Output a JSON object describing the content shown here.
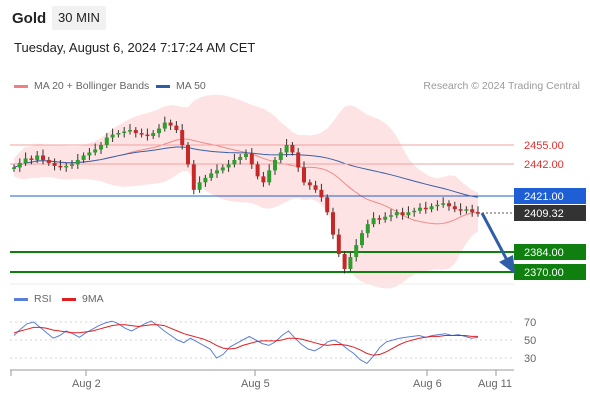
{
  "header": {
    "instrument": "Gold",
    "interval": "30 MIN",
    "datetime": "Tuesday, August 6, 2024 7:17:24 AM CET"
  },
  "legend_main": [
    {
      "label": "MA 20 + Bollinger Bands",
      "color": "#f08080"
    },
    {
      "label": "MA 50",
      "color": "#2e5da8"
    }
  ],
  "credit": "Research © 2024 Trading Central",
  "legend_rsi": [
    {
      "label": "RSI",
      "color": "#5b7fd6"
    },
    {
      "label": "9MA",
      "color": "#e02020"
    }
  ],
  "colors": {
    "resistance": "#e0302f",
    "pivot": "#1f5fd6",
    "support": "#0f7f0f",
    "current": "#333333",
    "band_fill": "#fde3e3",
    "ma50": "#3a5fa8",
    "arrow": "#2f5ea8"
  },
  "chart_data": [
    {
      "type": "candlestick",
      "title": "",
      "x_labels": [
        "Aug 2",
        "Aug 5",
        "Aug 6",
        "Aug 11"
      ],
      "price_levels": [
        {
          "value": "2455.00",
          "kind": "resistance"
        },
        {
          "value": "2442.00",
          "kind": "resistance"
        },
        {
          "value": "2421.00",
          "kind": "pivot"
        },
        {
          "value": "2409.32",
          "kind": "current"
        },
        {
          "value": "2384.00",
          "kind": "support"
        },
        {
          "value": "2370.00",
          "kind": "support"
        }
      ],
      "series": [
        {
          "name": "MA 20 + Bollinger Bands"
        },
        {
          "name": "MA 50"
        }
      ],
      "forecast": "down arrow toward 2370.00",
      "close_path": [
        2440,
        2443,
        2446,
        2445,
        2448,
        2445,
        2443,
        2441,
        2440,
        2441,
        2442,
        2445,
        2448,
        2450,
        2452,
        2455,
        2460,
        2462,
        2463,
        2464,
        2465,
        2463,
        2462,
        2461,
        2463,
        2466,
        2470,
        2468,
        2465,
        2455,
        2442,
        2425,
        2430,
        2433,
        2436,
        2438,
        2440,
        2442,
        2445,
        2447,
        2449,
        2442,
        2434,
        2430,
        2438,
        2445,
        2450,
        2455,
        2450,
        2440,
        2430,
        2428,
        2425,
        2420,
        2410,
        2395,
        2382,
        2372,
        2380,
        2388,
        2396,
        2402,
        2406,
        2405,
        2407,
        2408,
        2410,
        2408,
        2410,
        2411,
        2413,
        2412,
        2414,
        2415,
        2416,
        2414,
        2412,
        2411,
        2412,
        2410,
        2409
      ]
    },
    {
      "type": "line",
      "title": "",
      "y_ticks": [
        70,
        50,
        30
      ],
      "series": [
        {
          "name": "RSI",
          "values": [
            55,
            62,
            68,
            70,
            64,
            58,
            52,
            55,
            60,
            57,
            53,
            58,
            62,
            66,
            69,
            71,
            68,
            63,
            60,
            64,
            68,
            71,
            66,
            60,
            55,
            50,
            47,
            52,
            48,
            44,
            40,
            30,
            34,
            42,
            46,
            50,
            54,
            50,
            46,
            44,
            48,
            55,
            60,
            52,
            45,
            40,
            38,
            42,
            48,
            50,
            46,
            40,
            35,
            28,
            24,
            32,
            42,
            48,
            50,
            52,
            53,
            54,
            55,
            53,
            55,
            56,
            57,
            55,
            56,
            54,
            52,
            53
          ]
        },
        {
          "name": "9MA",
          "values": [
            58,
            60,
            62,
            64,
            64,
            63,
            61,
            60,
            59,
            58,
            58,
            59,
            60,
            62,
            64,
            66,
            67,
            67,
            66,
            65,
            66,
            67,
            67,
            66,
            63,
            60,
            57,
            55,
            53,
            51,
            48,
            44,
            41,
            40,
            41,
            44,
            46,
            48,
            49,
            49,
            49,
            50,
            52,
            52,
            51,
            49,
            47,
            45,
            44,
            45,
            45,
            44,
            42,
            39,
            35,
            33,
            34,
            37,
            41,
            45,
            48,
            50,
            52,
            53,
            54,
            54,
            55,
            55,
            55,
            55,
            54,
            54
          ]
        }
      ]
    }
  ]
}
